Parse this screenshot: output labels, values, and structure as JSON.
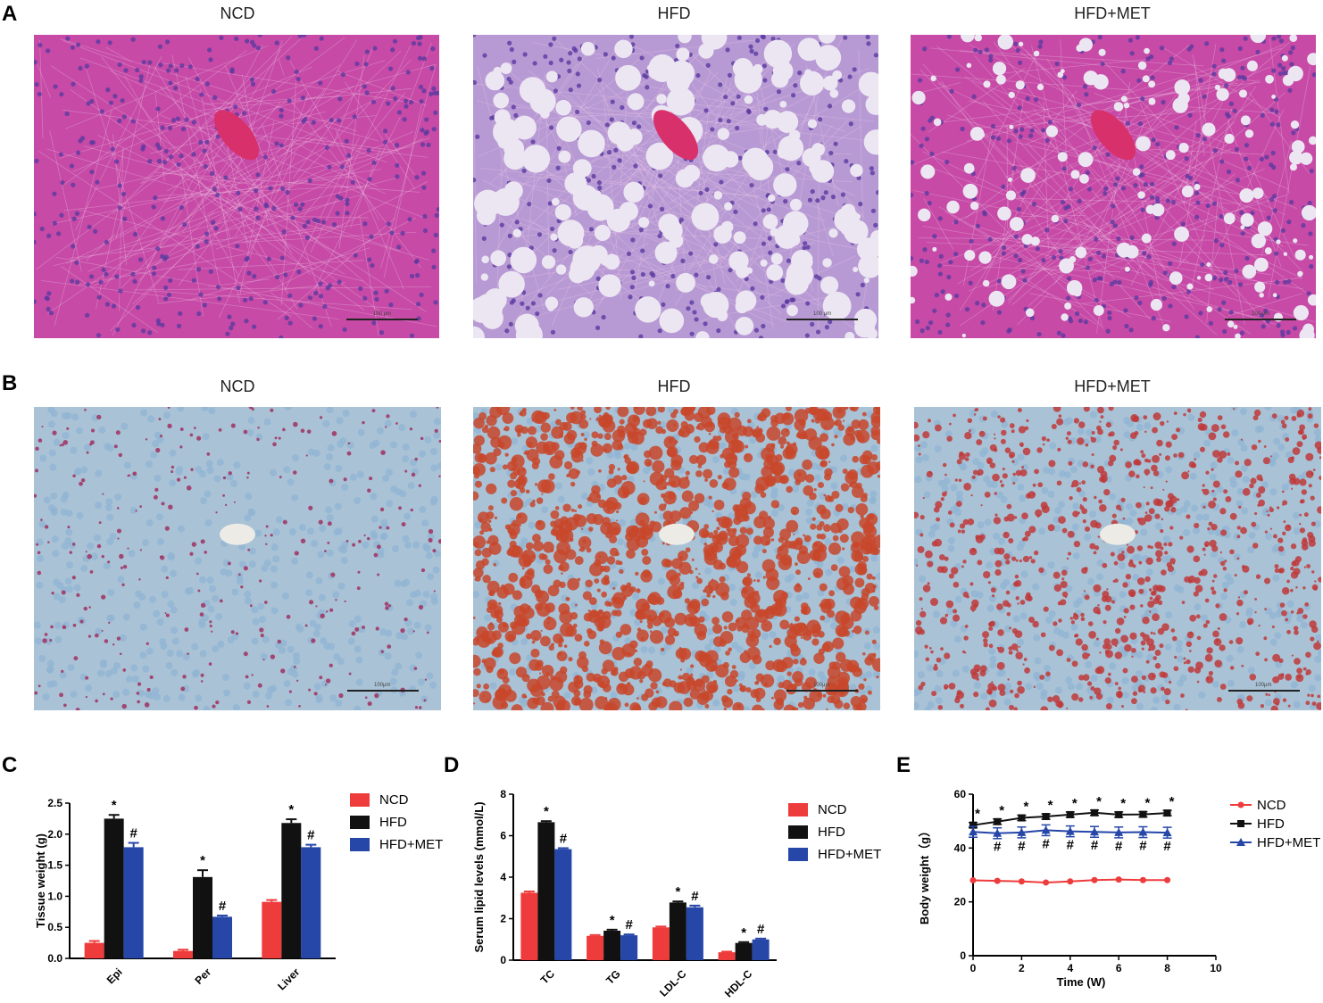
{
  "panels": {
    "A": {
      "letter": "A",
      "titles": [
        "NCD",
        "HFD",
        "HFD+MET"
      ],
      "scale_labels": [
        "100 μm",
        "100 μm",
        "100 μm"
      ]
    },
    "B": {
      "letter": "B",
      "titles": [
        "NCD",
        "HFD",
        "HFD+MET"
      ],
      "scale_labels": [
        "100μm",
        "100μm",
        "100μm"
      ]
    },
    "C": {
      "letter": "C"
    },
    "D": {
      "letter": "D"
    },
    "E": {
      "letter": "E"
    }
  },
  "colors": {
    "NCD": "#ee3b3b",
    "HFD": "#111111",
    "HFD+MET": "#2646a8",
    "he_pink": "#c64aa6",
    "he_purple": "#b79ad4",
    "oil_blue": "#a9c2d6",
    "oil_red": "#c8462a"
  },
  "chart_data": [
    {
      "id": "C",
      "type": "bar",
      "categories": [
        "Epi",
        "Per",
        "Liver"
      ],
      "series": [
        {
          "name": "NCD",
          "values": [
            0.25,
            0.12,
            0.91
          ],
          "err": [
            0.03,
            0.02,
            0.03
          ]
        },
        {
          "name": "HFD",
          "values": [
            2.25,
            1.31,
            2.18
          ],
          "err": [
            0.06,
            0.11,
            0.06
          ]
        },
        {
          "name": "HFD+MET",
          "values": [
            1.79,
            0.67,
            1.79
          ],
          "err": [
            0.07,
            0.02,
            0.04
          ]
        }
      ],
      "ylabel": "Tissue weight (g)",
      "ylim": [
        0,
        2.5
      ],
      "yticks": [
        "0.0",
        "0.5",
        "1.0",
        "1.5",
        "2.0",
        "2.5"
      ],
      "annotations": [
        {
          "category": 0,
          "series": 1,
          "text": "*"
        },
        {
          "category": 0,
          "series": 2,
          "text": "#"
        },
        {
          "category": 1,
          "series": 1,
          "text": "*"
        },
        {
          "category": 1,
          "series": 2,
          "text": "#"
        },
        {
          "category": 2,
          "series": 1,
          "text": "*"
        },
        {
          "category": 2,
          "series": 2,
          "text": "#"
        }
      ],
      "legend": "right"
    },
    {
      "id": "D",
      "type": "bar",
      "categories": [
        "TC",
        "TG",
        "LDL-C",
        "HDL-C"
      ],
      "series": [
        {
          "name": "NCD",
          "values": [
            3.25,
            1.17,
            1.58,
            0.38
          ],
          "err": [
            0.06,
            0.04,
            0.04,
            0.03
          ]
        },
        {
          "name": "HFD",
          "values": [
            6.65,
            1.42,
            2.78,
            0.83
          ],
          "err": [
            0.05,
            0.05,
            0.05,
            0.04
          ]
        },
        {
          "name": "HFD+MET",
          "values": [
            5.35,
            1.2,
            2.55,
            1.0
          ],
          "err": [
            0.05,
            0.04,
            0.08,
            0.04
          ]
        }
      ],
      "ylabel": "Serum lipid levels (mmol/L)",
      "ylim": [
        0,
        8
      ],
      "yticks": [
        "0",
        "2",
        "4",
        "6",
        "8"
      ],
      "annotations": [
        {
          "category": 0,
          "series": 1,
          "text": "*"
        },
        {
          "category": 0,
          "series": 2,
          "text": "#"
        },
        {
          "category": 1,
          "series": 1,
          "text": "*"
        },
        {
          "category": 1,
          "series": 2,
          "text": "#"
        },
        {
          "category": 2,
          "series": 1,
          "text": "*"
        },
        {
          "category": 2,
          "series": 2,
          "text": "#"
        },
        {
          "category": 3,
          "series": 1,
          "text": "*"
        },
        {
          "category": 3,
          "series": 2,
          "text": "#"
        }
      ],
      "legend": "right"
    },
    {
      "id": "E",
      "type": "line",
      "x": [
        0,
        1,
        2,
        3,
        4,
        5,
        6,
        7,
        8
      ],
      "series": [
        {
          "name": "NCD",
          "marker": "circle",
          "values": [
            28,
            27.8,
            27.6,
            27.2,
            27.6,
            28.1,
            28.3,
            28.1,
            28.1
          ],
          "err": [
            0.4,
            0.4,
            0.4,
            0.4,
            0.4,
            0.4,
            0.4,
            0.4,
            0.4
          ]
        },
        {
          "name": "HFD",
          "marker": "square",
          "values": [
            48.5,
            49.8,
            51.2,
            51.7,
            52.4,
            53.1,
            52.4,
            52.5,
            53
          ],
          "err": [
            1,
            1,
            1,
            1,
            1,
            1,
            1,
            1,
            1
          ]
        },
        {
          "name": "HFD+MET",
          "marker": "triangle",
          "values": [
            46,
            45.5,
            45.8,
            46.6,
            46.2,
            46,
            45.8,
            45.9,
            45.7
          ],
          "err": [
            2,
            2,
            2,
            2,
            2,
            2,
            2,
            2,
            2
          ]
        }
      ],
      "xlabel": "Time (W)",
      "ylabel": "Body weight（g）",
      "xlim": [
        0,
        10
      ],
      "ylim": [
        0,
        60
      ],
      "xticks": [
        "0",
        "2",
        "4",
        "6",
        "8",
        "10"
      ],
      "yticks": [
        "0",
        "20",
        "40",
        "60"
      ],
      "star_label": "*",
      "hash_label": "#",
      "legend": "right"
    }
  ]
}
